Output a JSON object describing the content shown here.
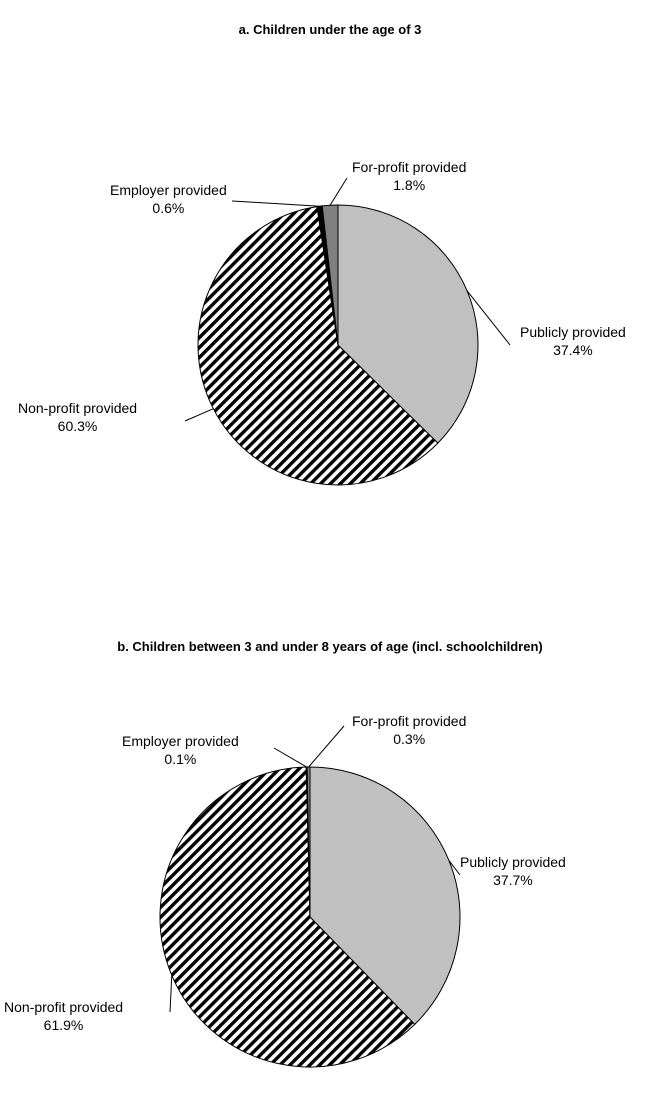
{
  "chart_data": [
    {
      "type": "pie",
      "title": "a. Children under the age of 3",
      "slices": [
        {
          "label": "Publicly provided",
          "value": 37.4,
          "value_label": "37.4%",
          "fill": "#c0c0c0",
          "pattern": "solid"
        },
        {
          "label": "Non-profit provided",
          "value": 60.3,
          "value_label": "60.3%",
          "fill": "#ffffff",
          "pattern": "diagonal-stripes"
        },
        {
          "label": "Employer provided",
          "value": 0.6,
          "value_label": "0.6%",
          "fill": "#000000",
          "pattern": "solid"
        },
        {
          "label": "For-profit provided",
          "value": 1.8,
          "value_label": "1.8%",
          "fill": "#808080",
          "pattern": "solid"
        }
      ]
    },
    {
      "type": "pie",
      "title": "b. Children between 3 and under 8 years of age (incl. schoolchildren)",
      "slices": [
        {
          "label": "Publicly provided",
          "value": 37.7,
          "value_label": "37.7%",
          "fill": "#c0c0c0",
          "pattern": "solid"
        },
        {
          "label": "Non-profit provided",
          "value": 61.9,
          "value_label": "61.9%",
          "fill": "#ffffff",
          "pattern": "diagonal-stripes"
        },
        {
          "label": "Employer provided",
          "value": 0.1,
          "value_label": "0.1%",
          "fill": "#000000",
          "pattern": "solid"
        },
        {
          "label": "For-profit provided",
          "value": 0.3,
          "value_label": "0.3%",
          "fill": "#808080",
          "pattern": "solid"
        }
      ]
    }
  ]
}
